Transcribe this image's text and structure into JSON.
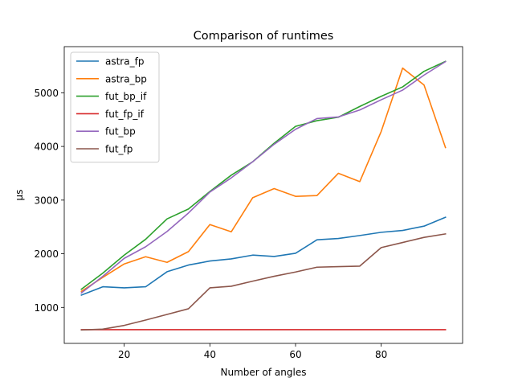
{
  "chart_data": {
    "type": "line",
    "title": "Comparison of runtimes",
    "xlabel": "Number of angles",
    "ylabel": "μs",
    "xlim": [
      6,
      99
    ],
    "ylim": [
      330,
      5860
    ],
    "xticks": [
      20,
      40,
      60,
      80
    ],
    "yticks": [
      1000,
      2000,
      3000,
      4000,
      5000
    ],
    "grid": false,
    "legend_position": "top-left",
    "x": [
      10,
      15,
      20,
      25,
      30,
      35,
      40,
      45,
      50,
      55,
      60,
      65,
      70,
      75,
      80,
      85,
      90,
      95
    ],
    "series": [
      {
        "name": "astra_fp",
        "color": "#1f77b4",
        "values": [
          1230,
          1385,
          1365,
          1385,
          1665,
          1790,
          1865,
          1905,
          1975,
          1950,
          2010,
          2260,
          2285,
          2340,
          2400,
          2435,
          2515,
          2680
        ]
      },
      {
        "name": "astra_bp",
        "color": "#ff7f0e",
        "values": [
          1300,
          1560,
          1810,
          1945,
          1840,
          2040,
          2545,
          2410,
          3045,
          3215,
          3070,
          3085,
          3500,
          3345,
          4280,
          5460,
          5145,
          3980
        ]
      },
      {
        "name": "fut_bp_if",
        "color": "#2ca02c",
        "values": [
          1340,
          1640,
          1975,
          2270,
          2650,
          2835,
          3160,
          3465,
          3715,
          4060,
          4375,
          4480,
          4545,
          4745,
          4935,
          5110,
          5400,
          5585
        ]
      },
      {
        "name": "fut_fp_if",
        "color": "#d62728",
        "values": [
          585,
          585,
          585,
          585,
          585,
          585,
          585,
          585,
          585,
          585,
          585,
          585,
          585,
          585,
          585,
          585,
          585,
          585
        ]
      },
      {
        "name": "fut_bp",
        "color": "#9467bd",
        "values": [
          1270,
          1580,
          1915,
          2130,
          2415,
          2760,
          3150,
          3415,
          3715,
          4040,
          4320,
          4520,
          4550,
          4680,
          4870,
          5050,
          5330,
          5580
        ]
      },
      {
        "name": "fut_fp",
        "color": "#8c564b",
        "values": [
          580,
          595,
          665,
          765,
          870,
          975,
          1365,
          1395,
          1490,
          1580,
          1660,
          1750,
          1760,
          1770,
          2115,
          2210,
          2305,
          2370
        ]
      }
    ]
  }
}
